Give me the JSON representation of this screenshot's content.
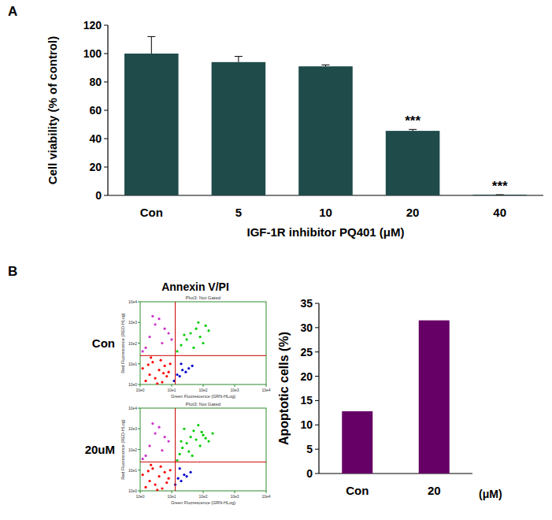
{
  "chart_data": [
    {
      "type": "bar",
      "panel": "A",
      "y_label": "Cell viability (% of control)",
      "x_label": "IGF-1R inhibitor PQ401 (μM)",
      "categories": [
        "Con",
        "5",
        "10",
        "20",
        "40"
      ],
      "values": [
        100,
        94,
        91,
        45.5,
        0.5
      ],
      "errors": [
        12,
        4,
        1,
        1,
        0
      ],
      "color": "#1f4b4b",
      "ylim": [
        0,
        120
      ],
      "yticks": [
        0,
        20,
        40,
        60,
        80,
        100,
        120
      ],
      "grid": false,
      "annotations": [
        {
          "category": "20",
          "text": "***"
        },
        {
          "category": "40",
          "text": "***"
        }
      ]
    },
    {
      "type": "scatter",
      "panel": "B",
      "header": "Annexin V/PI",
      "row_label": "Con",
      "title": "Plot3: Not Gated",
      "x_label": "Green Fluorescence (GRN-HLog)",
      "y_label": "Red Fluorescence (RED-HLog)",
      "log": true,
      "xlim": [
        1,
        10000
      ],
      "ylim": [
        1,
        10000
      ],
      "xticks": [
        {
          "value": 1,
          "label": "10e0"
        },
        {
          "value": 10,
          "label": "10e1"
        },
        {
          "value": 100,
          "label": "10e2"
        },
        {
          "value": 1000,
          "label": "10e3"
        },
        {
          "value": 10000,
          "label": "10e4"
        }
      ],
      "yticks": [
        {
          "value": 1,
          "label": "10e0"
        },
        {
          "value": 10,
          "label": "10e1"
        },
        {
          "value": 100,
          "label": "10e2"
        },
        {
          "value": 1000,
          "label": "10e3"
        },
        {
          "value": 10000,
          "label": "10e4"
        }
      ],
      "gates": {
        "x": 13,
        "y": 25
      },
      "series": [
        {
          "color": "#ff0000",
          "marker": "dot",
          "x": [
            1.5,
            2,
            3,
            4,
            5,
            6,
            8,
            2.5,
            3.5,
            1.2,
            7,
            9,
            4.5,
            2.2,
            1.8,
            5.5
          ],
          "values": [
            1.5,
            3,
            2,
            5,
            1.3,
            8,
            4,
            12,
            1.1,
            6,
            2.5,
            10,
            15,
            20,
            9,
            3.5
          ]
        },
        {
          "color": "#0000cc",
          "marker": "dot",
          "x": [
            12,
            15,
            18,
            22,
            28,
            35,
            45,
            20
          ],
          "values": [
            1.5,
            3,
            2.5,
            5,
            4,
            6,
            8,
            10
          ]
        },
        {
          "color": "#00cc00",
          "marker": "dot",
          "x": [
            15,
            20,
            30,
            40,
            60,
            80,
            100,
            150,
            50,
            25,
            70,
            120
          ],
          "values": [
            40,
            80,
            150,
            300,
            500,
            200,
            100,
            400,
            60,
            250,
            1000,
            700
          ]
        },
        {
          "color": "#cc33cc",
          "marker": "dot",
          "x": [
            1.5,
            2,
            3,
            5,
            8,
            4,
            1.2,
            6,
            2.5,
            10
          ],
          "values": [
            60,
            200,
            800,
            100,
            300,
            1500,
            40,
            500,
            2000,
            150
          ]
        }
      ]
    },
    {
      "type": "scatter",
      "row_label": "20uM",
      "title": "Plot3: Not Gated",
      "x_label": "Green Fluorescence (GRN-HLog)",
      "y_label": "Red Fluorescence (RED-HLog)",
      "log": true,
      "xlim": [
        1,
        10000
      ],
      "ylim": [
        1,
        10000
      ],
      "xticks": [
        {
          "value": 1,
          "label": "10e0"
        },
        {
          "value": 10,
          "label": "10e1"
        },
        {
          "value": 100,
          "label": "10e2"
        },
        {
          "value": 1000,
          "label": "10e3"
        },
        {
          "value": 10000,
          "label": "10e4"
        }
      ],
      "yticks": [
        {
          "value": 1,
          "label": "10e0"
        },
        {
          "value": 10,
          "label": "10e1"
        },
        {
          "value": 100,
          "label": "10e2"
        },
        {
          "value": 1000,
          "label": "10e3"
        },
        {
          "value": 10000,
          "label": "10e4"
        }
      ],
      "gates": {
        "x": 13,
        "y": 25
      },
      "series": [
        {
          "color": "#ff0000",
          "marker": "dot",
          "x": [
            1.5,
            2,
            3,
            4,
            5,
            6,
            8,
            2.5,
            3.5,
            1.2,
            7,
            9,
            4.5,
            2.2,
            1.8
          ],
          "values": [
            1.5,
            3,
            2,
            5,
            1.3,
            8,
            4,
            12,
            1.1,
            6,
            2.5,
            10,
            15,
            18,
            9
          ]
        },
        {
          "color": "#0000cc",
          "marker": "dot",
          "x": [
            13,
            16,
            20,
            25,
            30,
            40,
            18
          ],
          "values": [
            2,
            4,
            3,
            6,
            5,
            8,
            12
          ]
        },
        {
          "color": "#00cc00",
          "marker": "dot",
          "x": [
            15,
            18,
            22,
            30,
            40,
            50,
            60,
            80,
            100,
            150,
            200,
            25,
            35,
            70,
            120,
            45,
            20,
            90
          ],
          "values": [
            30,
            60,
            120,
            200,
            400,
            800,
            300,
            150,
            500,
            250,
            600,
            1000,
            80,
            1500,
            350,
            50,
            250,
            700
          ]
        },
        {
          "color": "#cc33cc",
          "marker": "dot",
          "x": [
            1.5,
            2,
            3,
            5,
            8,
            4,
            1.2,
            6,
            2.5
          ],
          "values": [
            50,
            150,
            600,
            90,
            250,
            1200,
            35,
            400,
            1800
          ]
        }
      ]
    },
    {
      "type": "bar",
      "y_label": "Apoptotic cells (%)",
      "unit_label": "(μM)",
      "categories": [
        "Con",
        "20"
      ],
      "values": [
        12.8,
        31.5
      ],
      "color": "#660066",
      "ylim": [
        0,
        35
      ],
      "yticks": [
        0,
        5,
        10,
        15,
        20,
        25,
        30,
        35
      ],
      "grid": false
    }
  ]
}
